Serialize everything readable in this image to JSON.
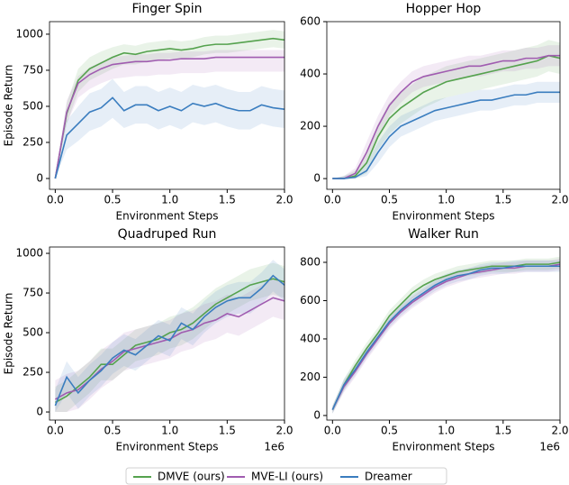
{
  "chart_data": [
    {
      "type": "line",
      "title": "Finger Spin",
      "xlabel": "Environment Steps",
      "ylabel": "Episode Return",
      "x": [
        0,
        0.1,
        0.2,
        0.3,
        0.4,
        0.5,
        0.6,
        0.7,
        0.8,
        0.9,
        1.0,
        1.1,
        1.2,
        1.3,
        1.4,
        1.5,
        1.6,
        1.7,
        1.8,
        1.9,
        2.0
      ],
      "xlim": [
        -0.05,
        2.0
      ],
      "ylim": [
        -75,
        1087
      ],
      "xticks": [
        {
          "value": 0,
          "label": "0.0"
        },
        {
          "value": 0.5,
          "label": "0.5"
        },
        {
          "value": 1,
          "label": "1.0"
        },
        {
          "value": 1.5,
          "label": "1.5"
        },
        {
          "value": 2,
          "label": "2.0"
        }
      ],
      "yticks": [
        0,
        250,
        500,
        750,
        1000
      ],
      "series": [
        {
          "name": "DMVE (ours)",
          "color": "#55a24e",
          "values": [
            0,
            450,
            680,
            760,
            800,
            840,
            870,
            860,
            880,
            890,
            900,
            890,
            900,
            920,
            930,
            930,
            940,
            950,
            960,
            970,
            960
          ],
          "lower": [
            0,
            380,
            600,
            680,
            720,
            760,
            790,
            790,
            810,
            820,
            830,
            830,
            840,
            860,
            870,
            870,
            880,
            890,
            900,
            910,
            900
          ],
          "upper": [
            0,
            520,
            760,
            840,
            880,
            910,
            930,
            920,
            940,
            950,
            960,
            950,
            960,
            980,
            990,
            990,
            1000,
            1010,
            1020,
            1030,
            1020
          ]
        },
        {
          "name": "MVE-LI (ours)",
          "color": "#a05cb0",
          "values": [
            0,
            460,
            660,
            720,
            760,
            790,
            800,
            810,
            810,
            820,
            820,
            830,
            830,
            830,
            840,
            840,
            840,
            840,
            840,
            840,
            840
          ],
          "lower": [
            0,
            380,
            560,
            620,
            660,
            690,
            700,
            710,
            710,
            720,
            720,
            730,
            730,
            730,
            740,
            740,
            740,
            740,
            740,
            740,
            740
          ],
          "upper": [
            0,
            540,
            710,
            770,
            810,
            840,
            850,
            860,
            860,
            870,
            870,
            880,
            880,
            880,
            890,
            890,
            890,
            890,
            890,
            890,
            890
          ]
        },
        {
          "name": "Dreamer",
          "color": "#3a7dbf",
          "values": [
            0,
            300,
            380,
            460,
            490,
            560,
            470,
            510,
            510,
            470,
            500,
            470,
            520,
            500,
            520,
            490,
            470,
            470,
            510,
            490,
            480
          ],
          "lower": [
            0,
            200,
            260,
            330,
            360,
            420,
            350,
            380,
            380,
            340,
            370,
            340,
            390,
            370,
            390,
            360,
            340,
            340,
            380,
            360,
            350
          ],
          "upper": [
            0,
            400,
            500,
            590,
            620,
            690,
            600,
            640,
            640,
            600,
            630,
            600,
            650,
            630,
            650,
            620,
            600,
            600,
            640,
            620,
            610
          ]
        }
      ]
    },
    {
      "type": "line",
      "title": "Hopper Hop",
      "xlabel": "Environment Steps",
      "x": [
        0,
        0.1,
        0.2,
        0.3,
        0.4,
        0.5,
        0.6,
        0.7,
        0.8,
        0.9,
        1.0,
        1.1,
        1.2,
        1.3,
        1.4,
        1.5,
        1.6,
        1.7,
        1.8,
        1.9,
        2.0
      ],
      "xlim": [
        -0.05,
        2.0
      ],
      "ylim": [
        -41,
        600
      ],
      "xticks": [
        {
          "value": 0,
          "label": "0.0"
        },
        {
          "value": 0.5,
          "label": "0.5"
        },
        {
          "value": 1,
          "label": "1.0"
        },
        {
          "value": 1.5,
          "label": "1.5"
        },
        {
          "value": 2,
          "label": "2.0"
        }
      ],
      "yticks": [
        0,
        200,
        400,
        600
      ],
      "series": [
        {
          "name": "DMVE (ours)",
          "color": "#55a24e",
          "values": [
            0,
            0,
            10,
            60,
            160,
            230,
            270,
            300,
            330,
            350,
            370,
            380,
            390,
            400,
            410,
            420,
            430,
            440,
            450,
            470,
            460
          ],
          "lower": [
            0,
            0,
            0,
            20,
            110,
            170,
            210,
            240,
            270,
            290,
            310,
            320,
            330,
            340,
            350,
            360,
            370,
            380,
            390,
            410,
            400
          ],
          "upper": [
            0,
            10,
            30,
            100,
            210,
            290,
            330,
            360,
            390,
            410,
            430,
            440,
            450,
            460,
            470,
            480,
            490,
            500,
            510,
            530,
            520
          ]
        },
        {
          "name": "MVE-LI (ours)",
          "color": "#a05cb0",
          "values": [
            0,
            0,
            20,
            100,
            200,
            280,
            330,
            370,
            390,
            400,
            410,
            420,
            430,
            430,
            440,
            450,
            450,
            460,
            460,
            470,
            470
          ],
          "lower": [
            0,
            0,
            5,
            60,
            160,
            240,
            290,
            330,
            350,
            360,
            370,
            380,
            390,
            390,
            400,
            410,
            410,
            420,
            420,
            430,
            430
          ],
          "upper": [
            0,
            10,
            40,
            140,
            240,
            320,
            370,
            410,
            430,
            440,
            450,
            460,
            470,
            470,
            480,
            490,
            490,
            500,
            500,
            510,
            510
          ]
        },
        {
          "name": "Dreamer",
          "color": "#3a7dbf",
          "values": [
            0,
            0,
            5,
            30,
            100,
            160,
            200,
            220,
            240,
            260,
            270,
            280,
            290,
            300,
            300,
            310,
            320,
            320,
            330,
            330,
            330
          ],
          "lower": [
            0,
            0,
            0,
            10,
            60,
            120,
            160,
            180,
            200,
            220,
            230,
            240,
            250,
            260,
            260,
            270,
            280,
            280,
            290,
            290,
            290
          ],
          "upper": [
            0,
            10,
            20,
            60,
            140,
            200,
            240,
            260,
            280,
            300,
            310,
            320,
            330,
            340,
            340,
            350,
            360,
            360,
            370,
            370,
            370
          ]
        }
      ]
    },
    {
      "type": "line",
      "title": "Quadruped Run",
      "xlabel": "Environment Steps",
      "ylabel": "Episode Return",
      "x_offset_label": "1e6",
      "x": [
        0,
        0.1,
        0.2,
        0.3,
        0.4,
        0.5,
        0.6,
        0.7,
        0.8,
        0.9,
        1.0,
        1.1,
        1.2,
        1.3,
        1.4,
        1.5,
        1.6,
        1.7,
        1.8,
        1.9,
        2.0
      ],
      "xlim": [
        -0.05,
        2.0
      ],
      "ylim": [
        -51,
        1040
      ],
      "xticks": [
        {
          "value": 0,
          "label": "0.0"
        },
        {
          "value": 0.5,
          "label": "0.5"
        },
        {
          "value": 1,
          "label": "1.0"
        },
        {
          "value": 1.5,
          "label": "1.5"
        },
        {
          "value": 2,
          "label": "2.0"
        }
      ],
      "yticks": [
        0,
        250,
        500,
        750,
        1000
      ],
      "series": [
        {
          "name": "DMVE (ours)",
          "color": "#55a24e",
          "values": [
            60,
            100,
            160,
            220,
            300,
            300,
            360,
            420,
            440,
            460,
            500,
            520,
            560,
            620,
            680,
            720,
            760,
            800,
            820,
            840,
            820
          ],
          "lower": [
            0,
            0,
            60,
            120,
            200,
            200,
            260,
            320,
            340,
            360,
            400,
            420,
            460,
            520,
            580,
            620,
            660,
            700,
            720,
            740,
            720
          ],
          "upper": [
            160,
            200,
            260,
            320,
            400,
            400,
            460,
            520,
            540,
            560,
            600,
            620,
            660,
            720,
            780,
            820,
            860,
            900,
            920,
            940,
            920
          ]
        },
        {
          "name": "MVE-LI (ours)",
          "color": "#a05cb0",
          "values": [
            80,
            120,
            140,
            200,
            270,
            320,
            380,
            400,
            420,
            440,
            460,
            500,
            520,
            560,
            580,
            620,
            600,
            640,
            680,
            720,
            700
          ],
          "lower": [
            0,
            0,
            20,
            80,
            150,
            200,
            260,
            280,
            300,
            320,
            340,
            380,
            400,
            440,
            460,
            500,
            480,
            520,
            560,
            600,
            580
          ],
          "upper": [
            200,
            240,
            260,
            320,
            390,
            440,
            500,
            520,
            540,
            560,
            580,
            620,
            640,
            680,
            700,
            740,
            720,
            760,
            800,
            840,
            820
          ]
        },
        {
          "name": "Dreamer",
          "color": "#3a7dbf",
          "values": [
            40,
            220,
            120,
            200,
            260,
            340,
            390,
            360,
            420,
            480,
            450,
            560,
            520,
            600,
            660,
            700,
            720,
            720,
            780,
            860,
            800
          ],
          "lower": [
            0,
            120,
            20,
            100,
            160,
            240,
            290,
            260,
            320,
            380,
            350,
            460,
            420,
            500,
            560,
            600,
            620,
            620,
            680,
            760,
            700
          ],
          "upper": [
            140,
            320,
            220,
            300,
            360,
            440,
            490,
            460,
            520,
            580,
            550,
            660,
            620,
            700,
            760,
            800,
            820,
            820,
            880,
            960,
            900
          ]
        }
      ]
    },
    {
      "type": "line",
      "title": "Walker Run",
      "xlabel": "Environment Steps",
      "x_offset_label": "1e6",
      "x": [
        0,
        0.1,
        0.2,
        0.3,
        0.4,
        0.5,
        0.6,
        0.7,
        0.8,
        0.9,
        1.0,
        1.1,
        1.2,
        1.3,
        1.4,
        1.5,
        1.6,
        1.7,
        1.8,
        1.9,
        2.0
      ],
      "xlim": [
        -0.05,
        2.0
      ],
      "ylim": [
        -24,
        880
      ],
      "xticks": [
        {
          "value": 0,
          "label": "0.0"
        },
        {
          "value": 0.5,
          "label": "0.5"
        },
        {
          "value": 1,
          "label": "1.0"
        },
        {
          "value": 1.5,
          "label": "1.5"
        },
        {
          "value": 2,
          "label": "2.0"
        }
      ],
      "yticks": [
        0,
        200,
        400,
        600,
        800
      ],
      "series": [
        {
          "name": "DMVE (ours)",
          "color": "#55a24e",
          "values": [
            30,
            160,
            260,
            350,
            430,
            520,
            580,
            640,
            680,
            710,
            730,
            750,
            760,
            770,
            780,
            780,
            780,
            790,
            790,
            790,
            800
          ],
          "lower": [
            10,
            130,
            230,
            320,
            400,
            490,
            550,
            610,
            650,
            680,
            700,
            720,
            730,
            740,
            750,
            750,
            750,
            760,
            760,
            760,
            770
          ],
          "upper": [
            50,
            190,
            290,
            380,
            460,
            550,
            610,
            670,
            710,
            740,
            760,
            780,
            790,
            800,
            810,
            810,
            810,
            820,
            820,
            820,
            830
          ]
        },
        {
          "name": "MVE-LI (ours)",
          "color": "#a05cb0",
          "values": [
            30,
            150,
            230,
            320,
            400,
            480,
            540,
            590,
            630,
            670,
            700,
            720,
            740,
            750,
            760,
            770,
            770,
            780,
            780,
            780,
            790
          ],
          "lower": [
            10,
            120,
            200,
            290,
            370,
            450,
            510,
            560,
            600,
            640,
            670,
            690,
            710,
            720,
            730,
            740,
            740,
            750,
            750,
            750,
            760
          ],
          "upper": [
            50,
            180,
            260,
            350,
            430,
            510,
            570,
            620,
            660,
            700,
            730,
            750,
            770,
            780,
            790,
            800,
            800,
            810,
            810,
            810,
            820
          ]
        },
        {
          "name": "Dreamer",
          "color": "#3a7dbf",
          "values": [
            30,
            160,
            240,
            330,
            410,
            490,
            550,
            600,
            640,
            680,
            710,
            730,
            740,
            760,
            770,
            770,
            780,
            780,
            780,
            780,
            780
          ],
          "lower": [
            10,
            130,
            210,
            300,
            380,
            460,
            520,
            570,
            610,
            650,
            680,
            700,
            710,
            730,
            740,
            740,
            750,
            750,
            750,
            750,
            750
          ],
          "upper": [
            50,
            190,
            270,
            360,
            440,
            520,
            580,
            630,
            670,
            710,
            740,
            760,
            770,
            790,
            800,
            800,
            810,
            810,
            810,
            810,
            810
          ]
        }
      ]
    }
  ]
}
